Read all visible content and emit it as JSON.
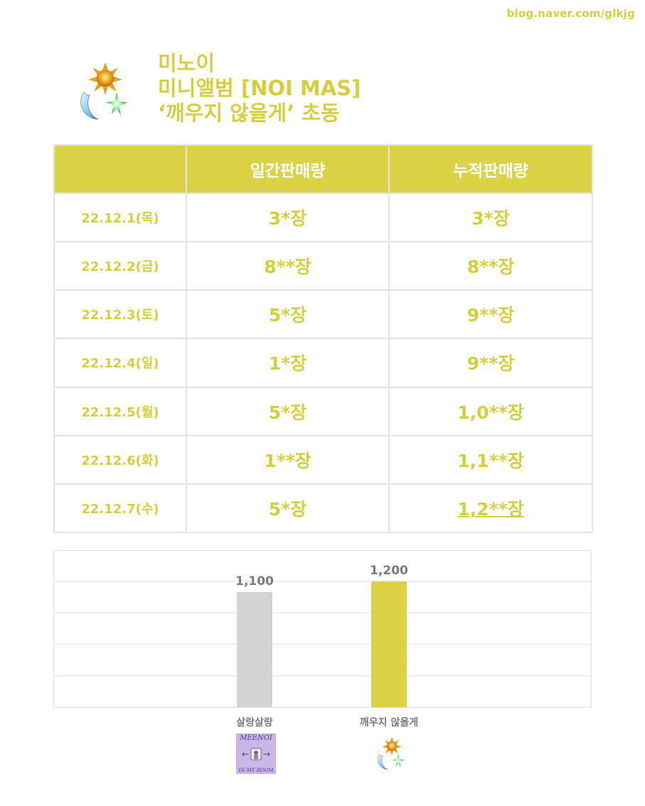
{
  "watermark": "blog.naver.com/glkjg",
  "title": {
    "line1": "미노이",
    "line2": "미니앨범 [NOI MAS]",
    "line3": "‘깨우지 않을게’ 초동"
  },
  "table": {
    "headers": [
      "",
      "일간판매량",
      "누적판매량"
    ],
    "rows": [
      {
        "date": "22.12.1(목)",
        "daily": "3*장",
        "cumulative": "3*장"
      },
      {
        "date": "22.12.2(금)",
        "daily": "8**장",
        "cumulative": "8**장"
      },
      {
        "date": "22.12.3(토)",
        "daily": "5*장",
        "cumulative": "9**장"
      },
      {
        "date": "22.12.4(일)",
        "daily": "1*장",
        "cumulative": "9**장"
      },
      {
        "date": "22.12.5(월)",
        "daily": "5*장",
        "cumulative": "1,0**장"
      },
      {
        "date": "22.12.6(화)",
        "daily": "1**장",
        "cumulative": "1,1**장"
      },
      {
        "date": "22.12.7(수)",
        "daily": "5*장",
        "cumulative": "1,2**장"
      }
    ]
  },
  "cover": {
    "top_text": "MEENOI",
    "bottom_text": "IN MY ROOM"
  },
  "chart_data": {
    "type": "bar",
    "categories": [
      "살랑살랑",
      "깨우지 않을게"
    ],
    "values": [
      1100,
      1200
    ],
    "value_labels": [
      "1,100",
      "1,200"
    ],
    "colors": [
      "#d3d3d3",
      "#d9d345"
    ],
    "ylim": [
      0,
      1200
    ],
    "grid": true,
    "title": "",
    "xlabel": "",
    "ylabel": ""
  },
  "colors": {
    "accent": "#d9d345",
    "text_accent": "#d5cf3c",
    "gray_bar": "#d3d3d3",
    "grid": "#e4e4e4"
  },
  "icons": [
    "sun-moon-star-logo-icon",
    "album-cover-icon"
  ]
}
